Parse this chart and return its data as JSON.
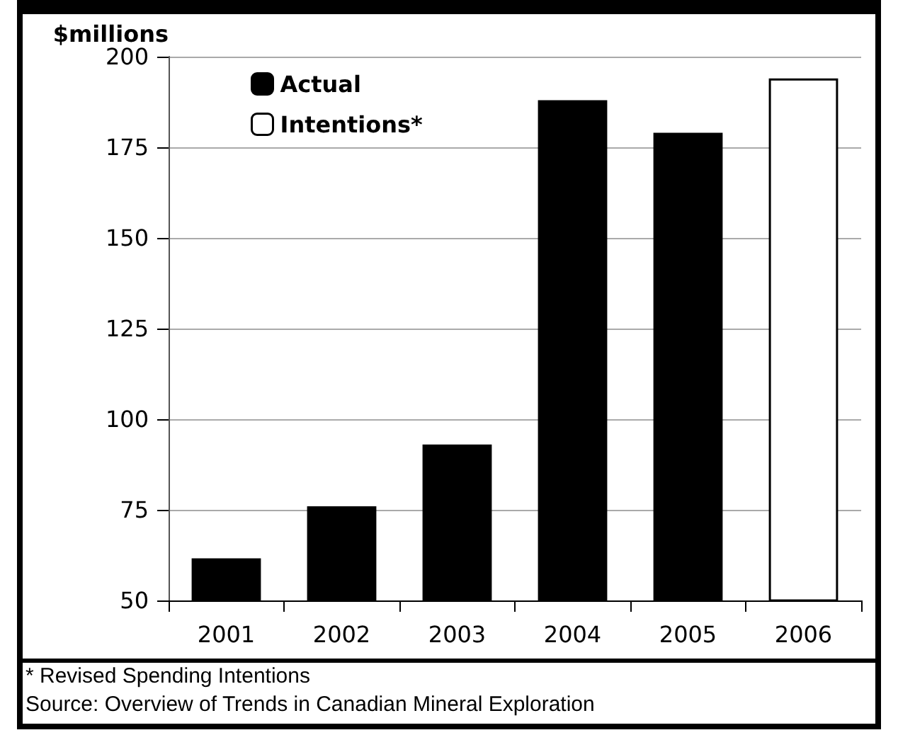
{
  "chart_data": {
    "type": "bar",
    "ylabel": "$millions",
    "categories": [
      "2001",
      "2002",
      "2003",
      "2004",
      "2005",
      "2006"
    ],
    "series": [
      {
        "name": "Actual",
        "color": "#000000",
        "values": [
          61.6,
          76,
          93,
          188,
          179,
          null
        ]
      },
      {
        "name": "Intentions*",
        "color": "#ffffff",
        "values": [
          null,
          null,
          null,
          null,
          null,
          194
        ]
      }
    ],
    "ylim": [
      50,
      200
    ],
    "yticks": [
      50,
      75,
      100,
      125,
      150,
      175,
      200
    ],
    "grid": "y",
    "legend": "top left",
    "annotations": [
      "* Revised Spending Intentions",
      "Source: Overview of Trends in Canadian Mineral Exploration"
    ]
  }
}
